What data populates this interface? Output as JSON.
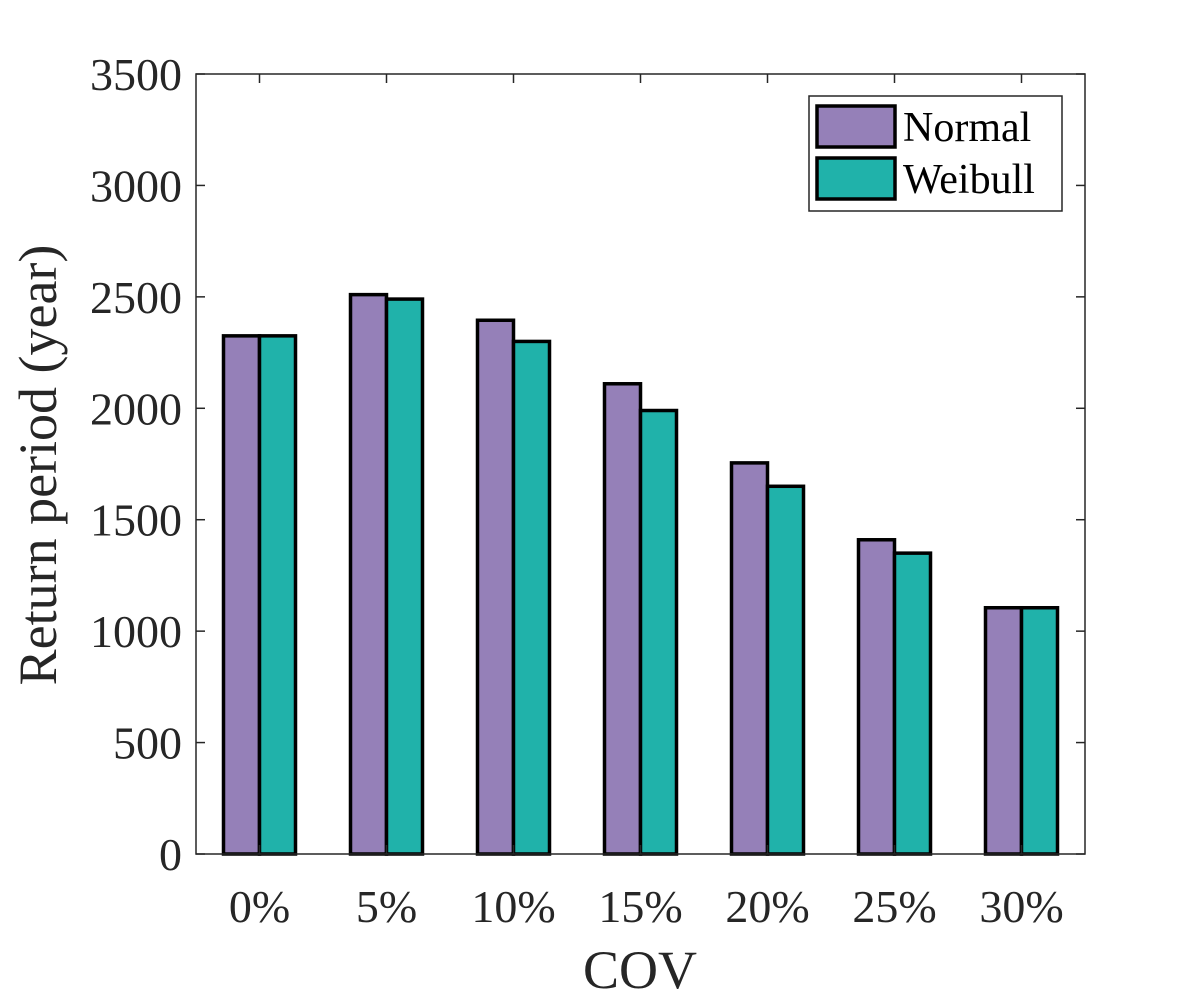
{
  "chart_data": {
    "type": "bar",
    "title": "",
    "xlabel": "COV",
    "ylabel": "Return period (year)",
    "categories": [
      "0%",
      "5%",
      "10%",
      "15%",
      "20%",
      "25%",
      "30%"
    ],
    "series": [
      {
        "name": "Normal",
        "color": "#9580b8",
        "values": [
          2325,
          2510,
          2395,
          2110,
          1755,
          1410,
          1105
        ]
      },
      {
        "name": "Weibull",
        "color": "#20b2aa",
        "values": [
          2325,
          2490,
          2300,
          1990,
          1650,
          1350,
          1105
        ]
      }
    ],
    "ylim": [
      0,
      3500
    ],
    "yticks": [
      0,
      500,
      1000,
      1500,
      2000,
      2500,
      3000,
      3500
    ],
    "ytick_labels": [
      "0",
      "500",
      "1000",
      "1500",
      "2000",
      "2500",
      "3000",
      "3500"
    ],
    "grid": false,
    "legend_position": "top-right",
    "bar_edge_color": "#000000"
  }
}
